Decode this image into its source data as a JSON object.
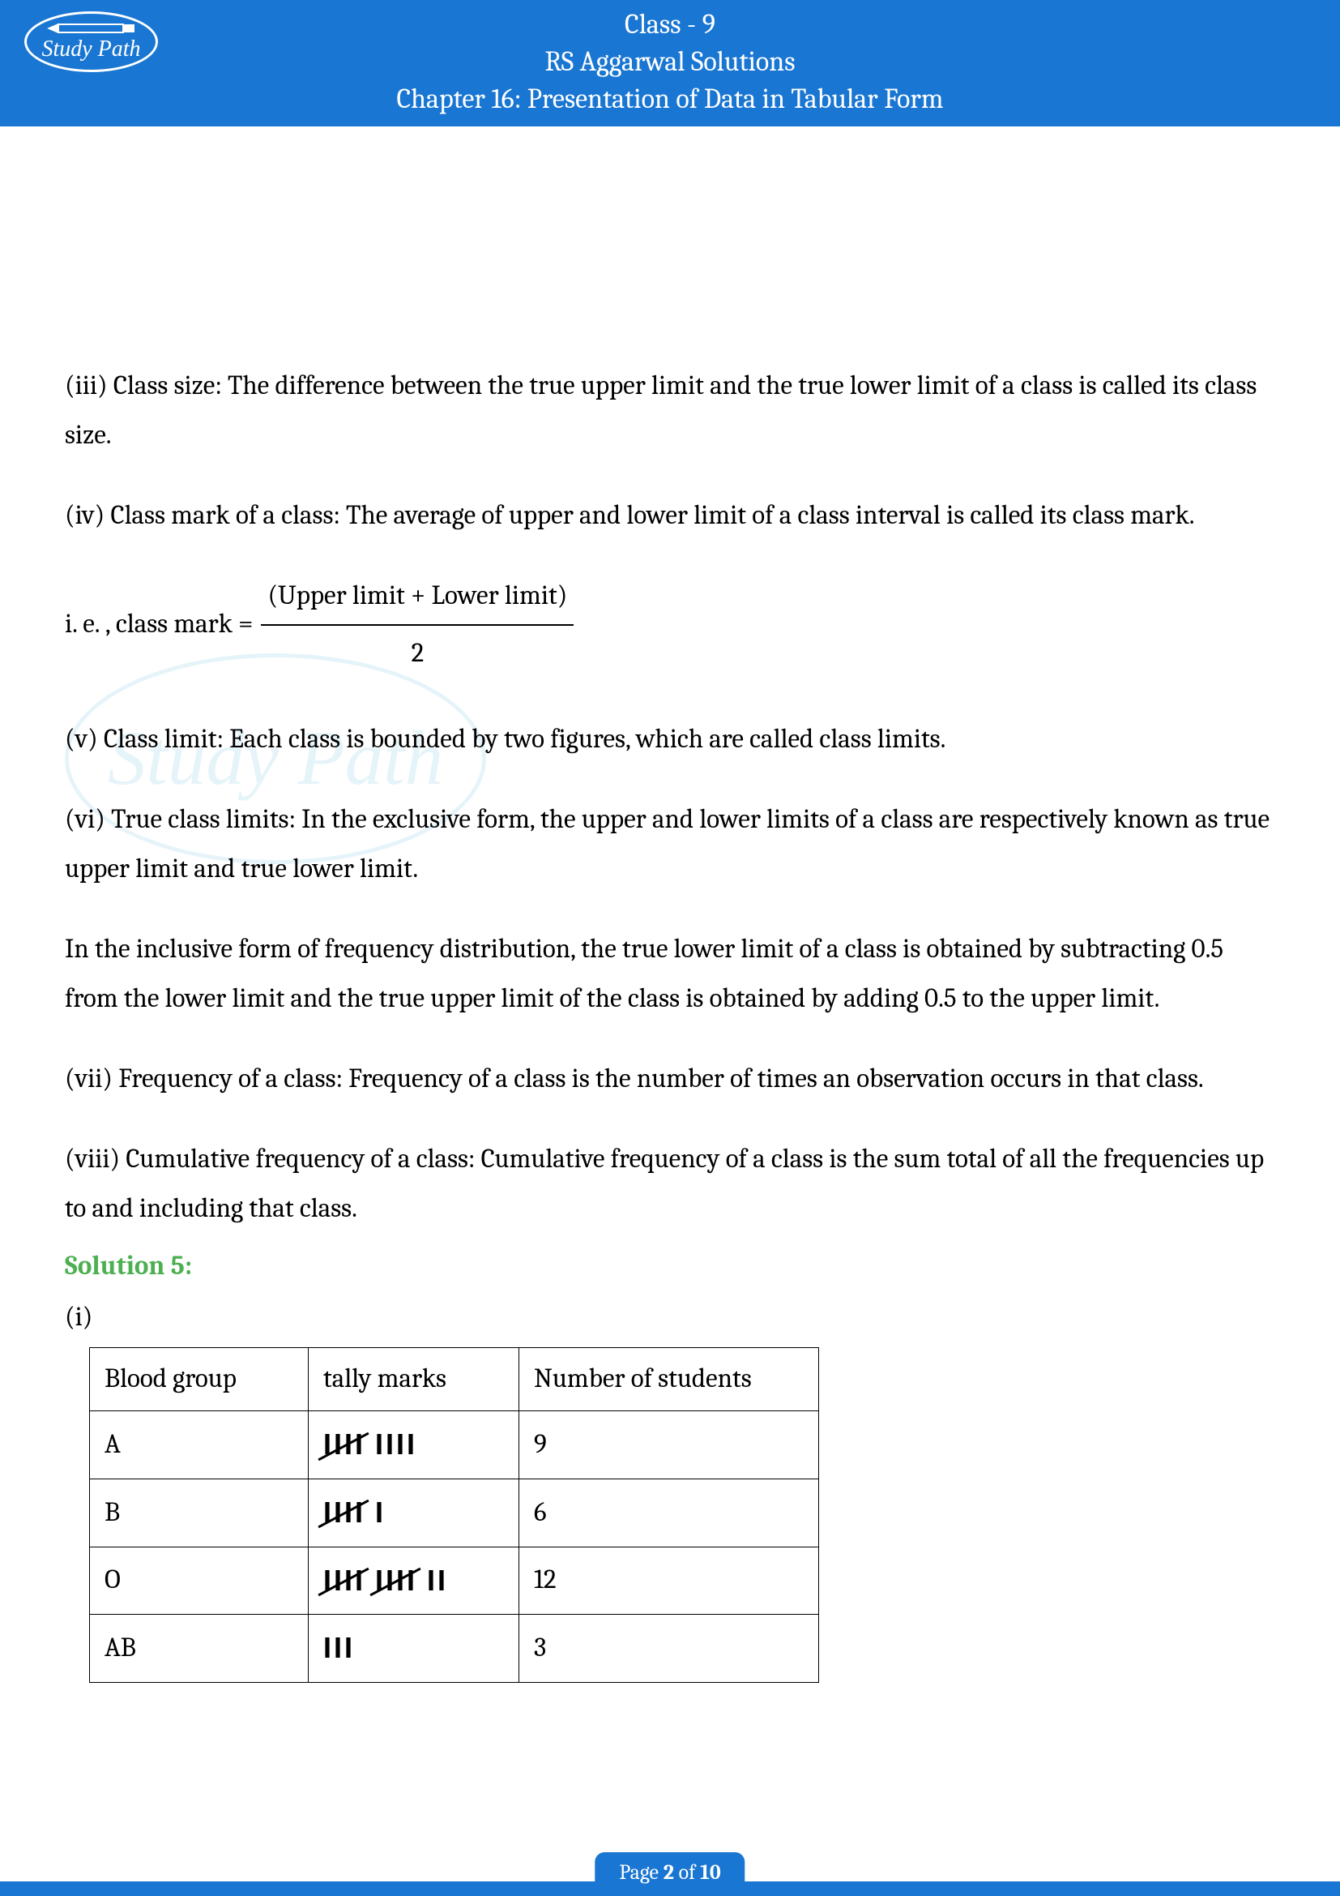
{
  "header": {
    "line1": "Class - 9",
    "line2": "RS Aggarwal Solutions",
    "line3": "Chapter 16: Presentation of Data in Tabular Form",
    "logo_text": "Study Path"
  },
  "paragraphs": {
    "p3": "(iii) Class size: The difference between the true upper limit and the true lower limit of a class is called its class size.",
    "p4": "(iv) Class mark of a class: The average of upper and lower limit of a class interval is called its class mark.",
    "formula_lhs": "i. e. , class mark =",
    "formula_num": "(Upper limit + Lower limit)",
    "formula_den": "2",
    "p5": "(v) Class limit: Each class is bounded by two figures, which are called class limits.",
    "p6": "(vi) True class limits: In the exclusive form, the upper and lower limits of a class are respectively known as true upper limit and true lower limit.",
    "p6b": "In the inclusive form of frequency distribution, the true lower limit of a class is obtained by subtracting 0.5 from the lower limit and the true upper limit of the class is obtained by adding 0.5 to the upper limit.",
    "p7": "(vii) Frequency of a class: Frequency of a class is the number of times an observation occurs in that class.",
    "p8": "(viii) Cumulative frequency of a class: Cumulative frequency of a class is the sum total of all the frequencies up to and including that class."
  },
  "solution": {
    "heading": "Solution 5:",
    "sub": "(i)"
  },
  "table": {
    "headers": [
      "Blood group",
      "tally marks",
      "Number of students"
    ],
    "rows": [
      {
        "group": "A",
        "tally_fives": 1,
        "tally_ones": 4,
        "count": "9"
      },
      {
        "group": "B",
        "tally_fives": 1,
        "tally_ones": 1,
        "count": "6"
      },
      {
        "group": "O",
        "tally_fives": 2,
        "tally_ones": 2,
        "count": "12"
      },
      {
        "group": "AB",
        "tally_fives": 0,
        "tally_ones": 3,
        "count": "3"
      }
    ]
  },
  "footer": {
    "page_prefix": "Page ",
    "page_current": "2",
    "page_middle": " of ",
    "page_total": "10"
  },
  "watermark": {
    "text": "Study Path"
  },
  "colors": {
    "header_bg": "#1976d2",
    "solution_color": "#4caf50",
    "watermark_color": "#4fb3d9"
  }
}
